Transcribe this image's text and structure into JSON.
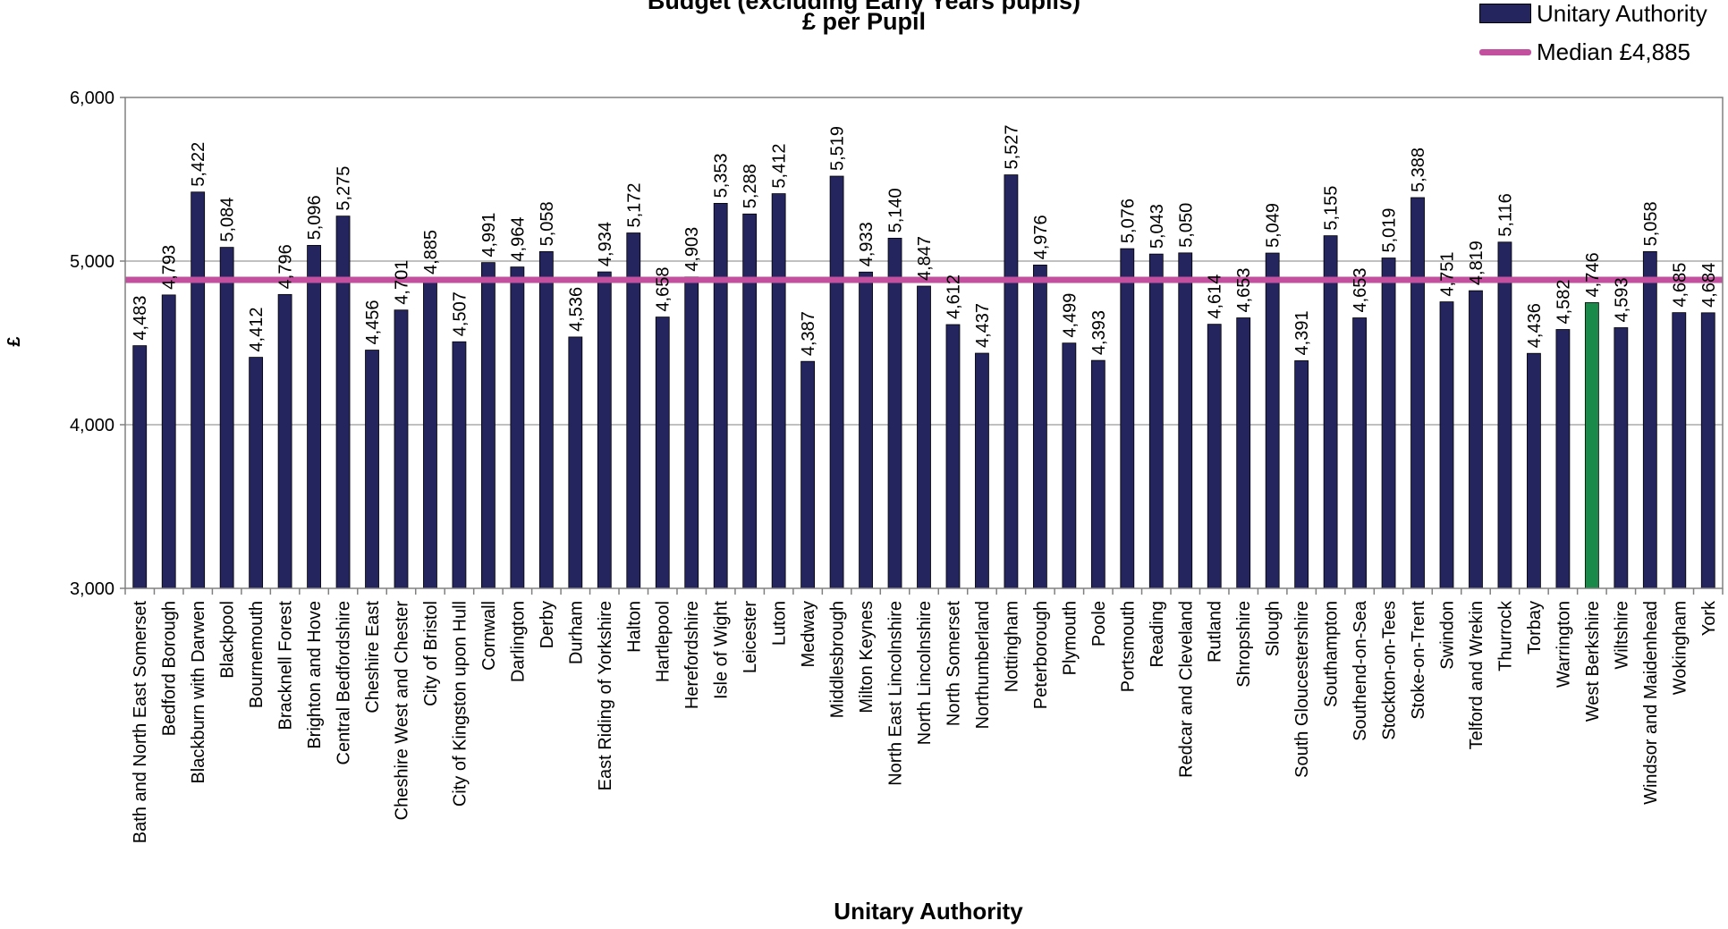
{
  "chart_data": {
    "type": "bar",
    "title_line1": "Budget (excluding Early Years pupils)",
    "title_line2": "£ per Pupil",
    "xlabel": "Unitary Authority",
    "ylabel": "£",
    "ylim": [
      3000,
      6000
    ],
    "yticks": [
      "3,000",
      "4,000",
      "5,000",
      "6,000"
    ],
    "ytick_values": [
      3000,
      4000,
      5000,
      6000
    ],
    "grid": true,
    "legend_position": "top-right",
    "legend": {
      "bars_label": "Unitary Authority",
      "median_label": "Median £4,885"
    },
    "median_value": 4885,
    "colors": {
      "bar": "#24245e",
      "highlight_bar": "#1a8a4a",
      "median": "#c2509e",
      "grid": "#808080",
      "axis": "#808080"
    },
    "highlight": "West Berkshire",
    "categories": [
      "Bath and North East Somerset",
      "Bedford Borough",
      "Blackburn with Darwen",
      "Blackpool",
      "Bournemouth",
      "Bracknell Forest",
      "Brighton and Hove",
      "Central Bedfordshire",
      "Cheshire East",
      "Cheshire West and Chester",
      "City of Bristol",
      "City of Kingston upon Hull",
      "Cornwall",
      "Darlington",
      "Derby",
      "Durham",
      "East Riding of Yorkshire",
      "Halton",
      "Hartlepool",
      "Herefordshire",
      "Isle of Wight",
      "Leicester",
      "Luton",
      "Medway",
      "Middlesbrough",
      "Milton Keynes",
      "North East Lincolnshire",
      "North Lincolnshire",
      "North Somerset",
      "Northumberland",
      "Nottingham",
      "Peterborough",
      "Plymouth",
      "Poole",
      "Portsmouth",
      "Reading",
      "Redcar and Cleveland",
      "Rutland",
      "Shropshire",
      "Slough",
      "South Gloucestershire",
      "Southampton",
      "Southend-on-Sea",
      "Stockton-on-Tees",
      "Stoke-on-Trent",
      "Swindon",
      "Telford and Wrekin",
      "Thurrock",
      "Torbay",
      "Warrington",
      "West Berkshire",
      "Wiltshire",
      "Windsor and Maidenhead",
      "Wokingham",
      "York"
    ],
    "values": [
      4483,
      4793,
      5422,
      5084,
      4412,
      4796,
      5096,
      5275,
      4456,
      4701,
      4885,
      4507,
      4991,
      4964,
      5058,
      4536,
      4934,
      5172,
      4658,
      4903,
      5353,
      5288,
      5412,
      4387,
      5519,
      4933,
      5140,
      4847,
      4612,
      4437,
      5527,
      4976,
      4499,
      4393,
      5076,
      5043,
      5050,
      4614,
      4653,
      5049,
      4391,
      5155,
      4653,
      5019,
      5388,
      4751,
      4819,
      5116,
      4436,
      4582,
      4746,
      4593,
      5058,
      4685,
      4684
    ],
    "value_labels": [
      "4,483",
      "4,793",
      "5,422",
      "5,084",
      "4,412",
      "4,796",
      "5,096",
      "5,275",
      "4,456",
      "4,701",
      "4,885",
      "4,507",
      "4,991",
      "4,964",
      "5,058",
      "4,536",
      "4,934",
      "5,172",
      "4,658",
      "4,903",
      "5,353",
      "5,288",
      "5,412",
      "4,387",
      "5,519",
      "4,933",
      "5,140",
      "4,847",
      "4,612",
      "4,437",
      "5,527",
      "4,976",
      "4,499",
      "4,393",
      "5,076",
      "5,043",
      "5,050",
      "4,614",
      "4,653",
      "5,049",
      "4,391",
      "5,155",
      "4,653",
      "5,019",
      "5,388",
      "4,751",
      "4,819",
      "5,116",
      "4,436",
      "4,582",
      "4,746",
      "4,593",
      "5,058",
      "4,685",
      "4,684"
    ]
  }
}
